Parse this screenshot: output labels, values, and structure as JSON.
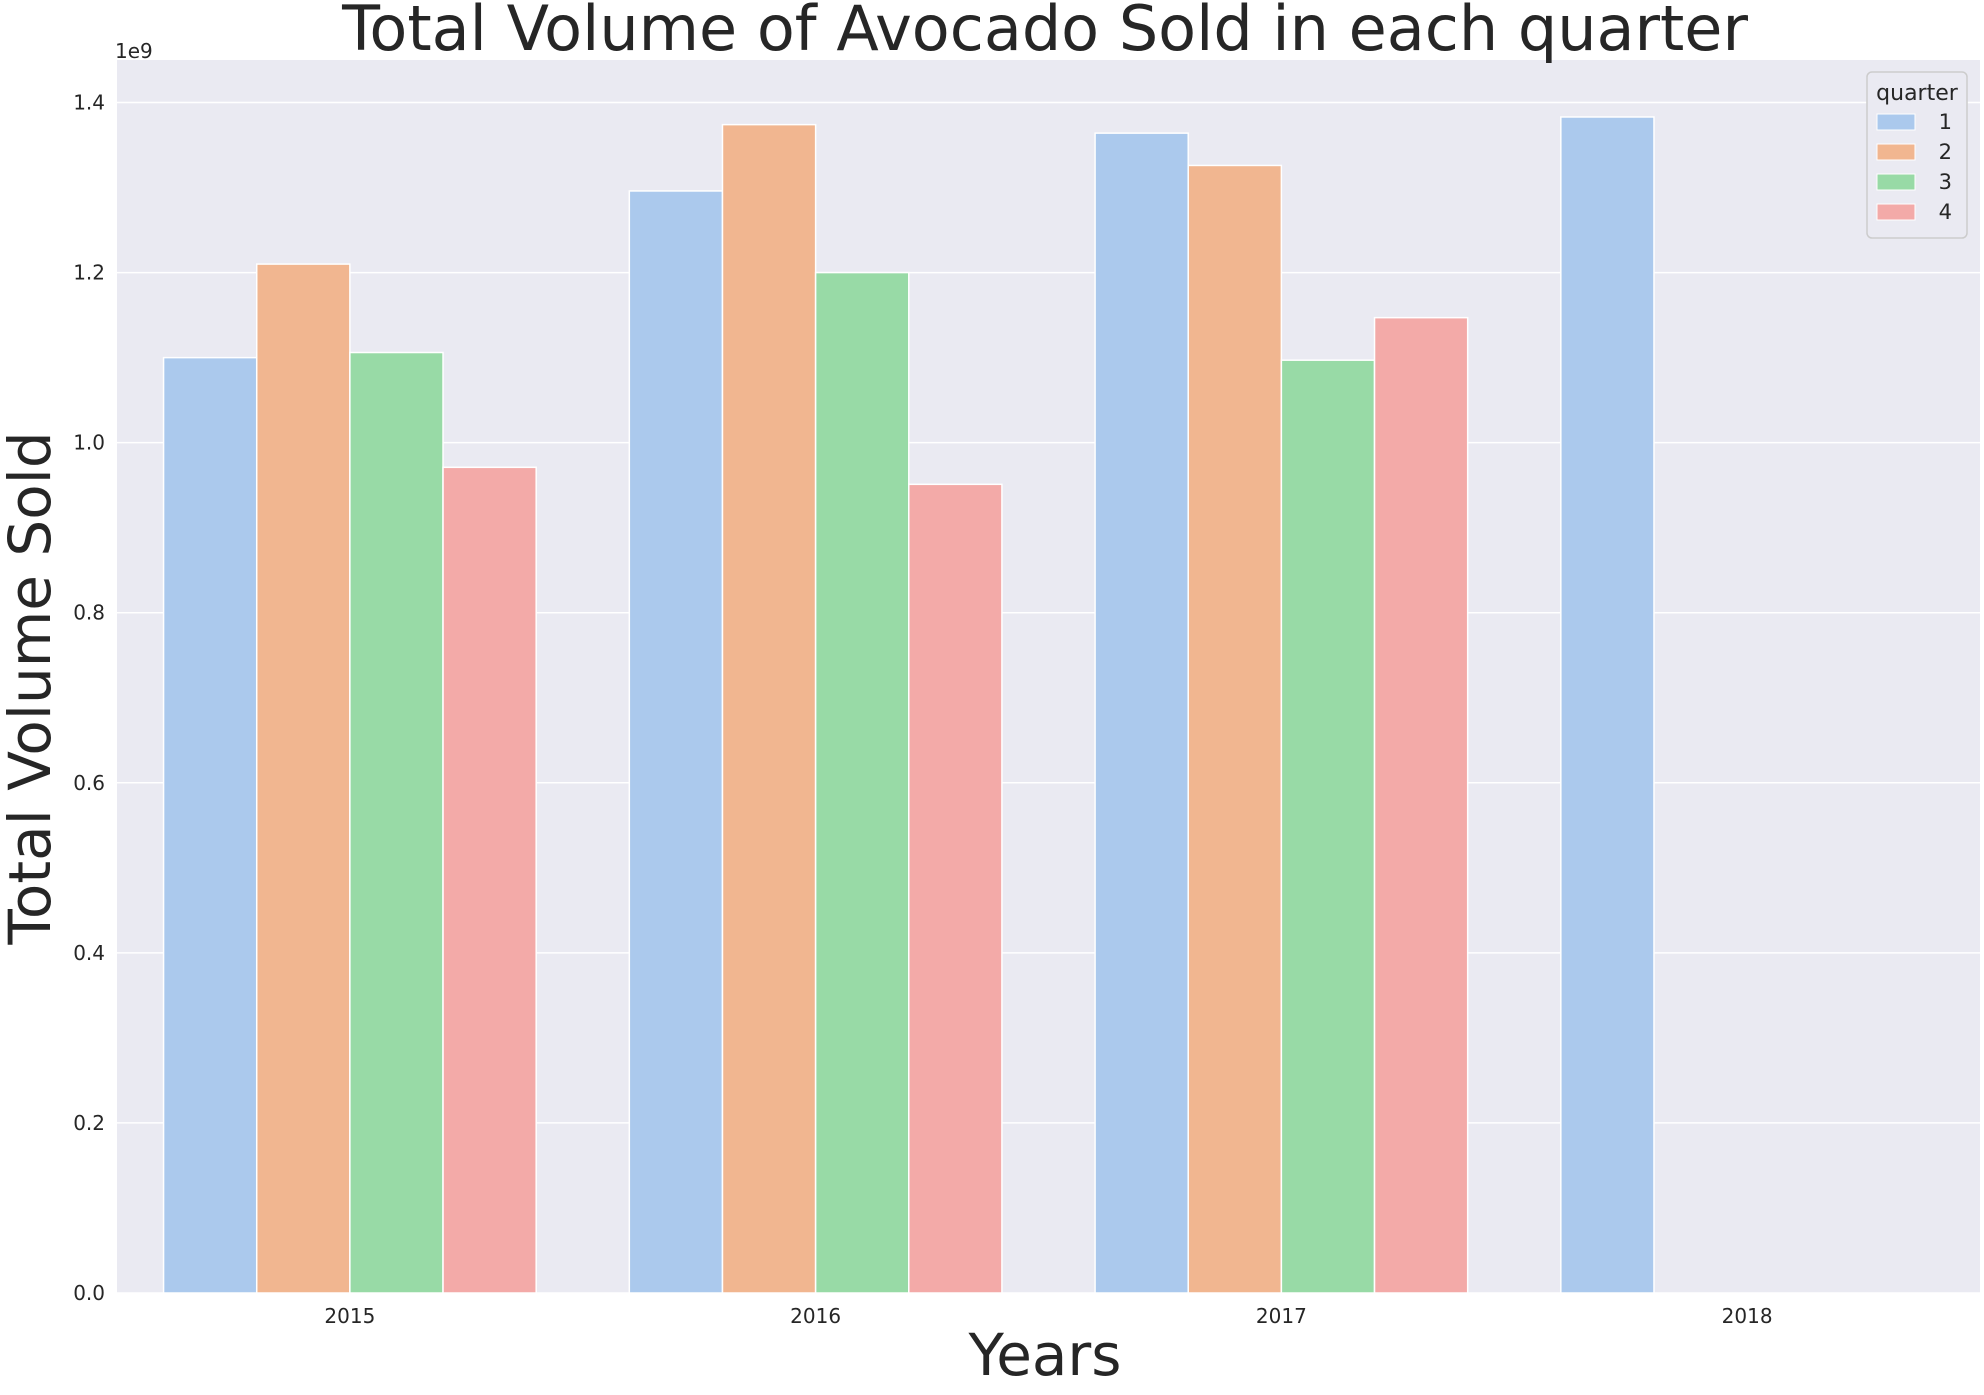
{
  "chart_data": {
    "type": "bar",
    "title": "Total Volume of Avocado Sold in each quarter",
    "xlabel": "Years",
    "ylabel": "Total Volume Sold",
    "y_offset_label": "1e9",
    "categories": [
      "2015",
      "2016",
      "2017",
      "2018"
    ],
    "ylim": [
      0,
      1.45
    ],
    "yticks": [
      0.0,
      0.2,
      0.4,
      0.6,
      0.8,
      1.0,
      1.2,
      1.4
    ],
    "ytick_labels": [
      "0.0",
      "0.2",
      "0.4",
      "0.6",
      "0.8",
      "1.0",
      "1.2",
      "1.4"
    ],
    "grid": true,
    "legend": {
      "title": "quarter",
      "placement": "top-right"
    },
    "series": [
      {
        "name": "1",
        "color": "#abc9ed",
        "values": [
          1.1,
          1.296,
          1.364,
          1.383
        ]
      },
      {
        "name": "2",
        "color": "#f1b690",
        "values": [
          1.21,
          1.374,
          1.326,
          null
        ]
      },
      {
        "name": "3",
        "color": "#98daa6",
        "values": [
          1.106,
          1.2,
          1.097,
          null
        ]
      },
      {
        "name": "4",
        "color": "#f3aaa8",
        "values": [
          0.971,
          0.951,
          1.147,
          null
        ]
      }
    ],
    "colors": {
      "plot_background": "#eaeaf2",
      "grid": "#ffffff"
    }
  }
}
